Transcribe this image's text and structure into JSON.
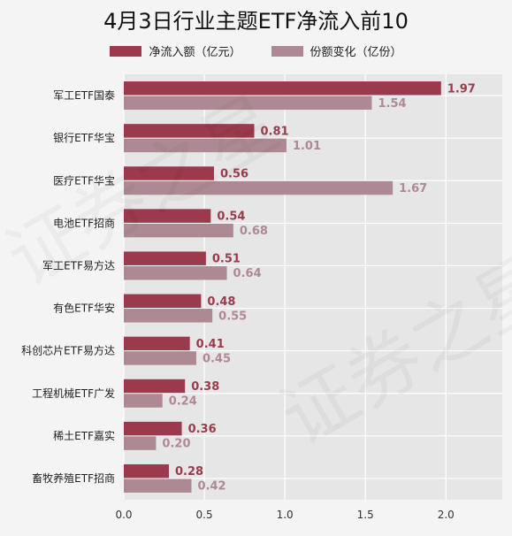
{
  "chart_data": {
    "type": "bar",
    "orientation": "horizontal",
    "title": "4月3日行业主题ETF净流入前10",
    "categories": [
      "军工ETF国泰",
      "银行ETF华宝",
      "医疗ETF华宝",
      "电池ETF招商",
      "军工ETF易方达",
      "有色ETF华安",
      "科创芯片ETF易方达",
      "工程机械ETF广发",
      "稀土ETF嘉实",
      "畜牧养殖ETF招商"
    ],
    "series": [
      {
        "name": "净流入额（亿元）",
        "color": "#9b3a4c",
        "values": [
          1.97,
          0.81,
          0.56,
          0.54,
          0.51,
          0.48,
          0.41,
          0.38,
          0.36,
          0.28
        ]
      },
      {
        "name": "份额变化（亿份）",
        "color": "#ad8a93",
        "values": [
          1.54,
          1.01,
          1.67,
          0.68,
          0.64,
          0.55,
          0.45,
          0.24,
          0.2,
          0.42
        ]
      }
    ],
    "xlim": [
      0,
      2.35
    ],
    "xticks": [
      "0.0",
      "0.5",
      "1.0",
      "1.5",
      "2.0"
    ],
    "grid": true,
    "legend_position": "top"
  },
  "watermark": "证券之星"
}
